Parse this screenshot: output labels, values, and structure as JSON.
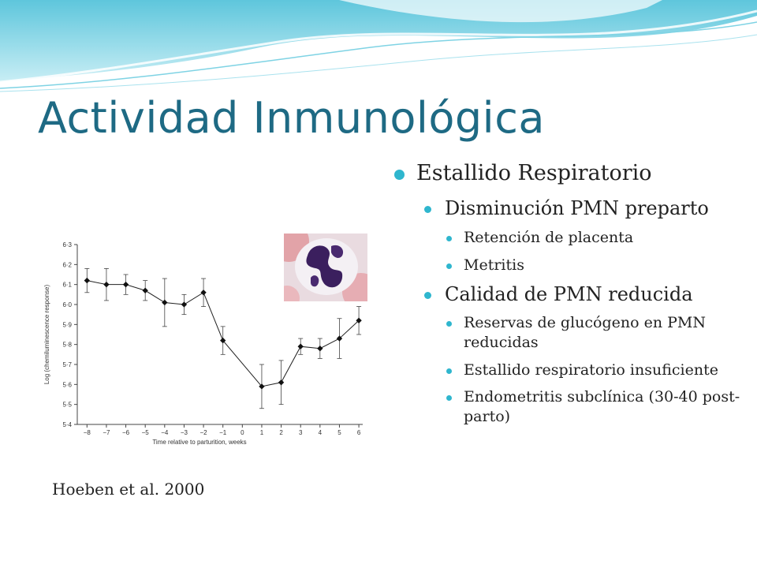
{
  "slide": {
    "title": "Actividad Inmunológica",
    "citation": "Hoeben et al. 2000",
    "accent_color": "#2fb6ce",
    "title_color": "#1e6a84",
    "neutrophil_image_icon": "neutrophil-micrograph-icon"
  },
  "bullets": {
    "level1": "Estallido Respiratorio",
    "group1": {
      "label": "Disminución PMN preparto",
      "items": [
        "Retención de placenta",
        "Metritis"
      ]
    },
    "group2": {
      "label": "Calidad de PMN reducida",
      "items": [
        "Reservas de glucógeno en PMN reducidas",
        "Estallido respiratorio insuficiente",
        "Endometritis subclínica (30-40 post-parto)"
      ]
    }
  },
  "chart_data": {
    "type": "line",
    "xlabel": "Time relative to parturition, weeks",
    "ylabel": "Log (chemiluminescence response)",
    "xlim": [
      -8.5,
      6.2
    ],
    "ylim": [
      5.4,
      6.3
    ],
    "x_ticks": [
      -8,
      -7,
      -6,
      -5,
      -4,
      -3,
      -2,
      -1,
      0,
      1,
      2,
      3,
      4,
      5,
      6
    ],
    "x_tick_labels": [
      "−8",
      "−7",
      "−6",
      "−5",
      "−4",
      "−3",
      "−2",
      "−1",
      "0",
      "1",
      "2",
      "3",
      "4",
      "5",
      "6"
    ],
    "y_ticks": [
      5.4,
      5.5,
      5.6,
      5.7,
      5.8,
      5.9,
      6.0,
      6.1,
      6.2,
      6.3
    ],
    "y_tick_labels": [
      "5·4",
      "5·5",
      "5·6",
      "5·7",
      "5·8",
      "5·9",
      "6·0",
      "6·1",
      "6·2",
      "6·3"
    ],
    "grid": false,
    "series": [
      {
        "x": [
          -8,
          -7,
          -6,
          -5,
          -4,
          -3,
          -2,
          -1,
          1,
          2,
          3,
          4,
          5,
          6
        ],
        "y": [
          6.12,
          6.1,
          6.1,
          6.07,
          6.01,
          6.0,
          6.06,
          5.82,
          5.59,
          5.61,
          5.79,
          5.78,
          5.83,
          5.92
        ],
        "err": [
          0.06,
          0.08,
          0.05,
          0.05,
          0.12,
          0.05,
          0.07,
          0.07,
          0.11,
          0.11,
          0.04,
          0.05,
          0.1,
          0.07
        ]
      }
    ]
  }
}
